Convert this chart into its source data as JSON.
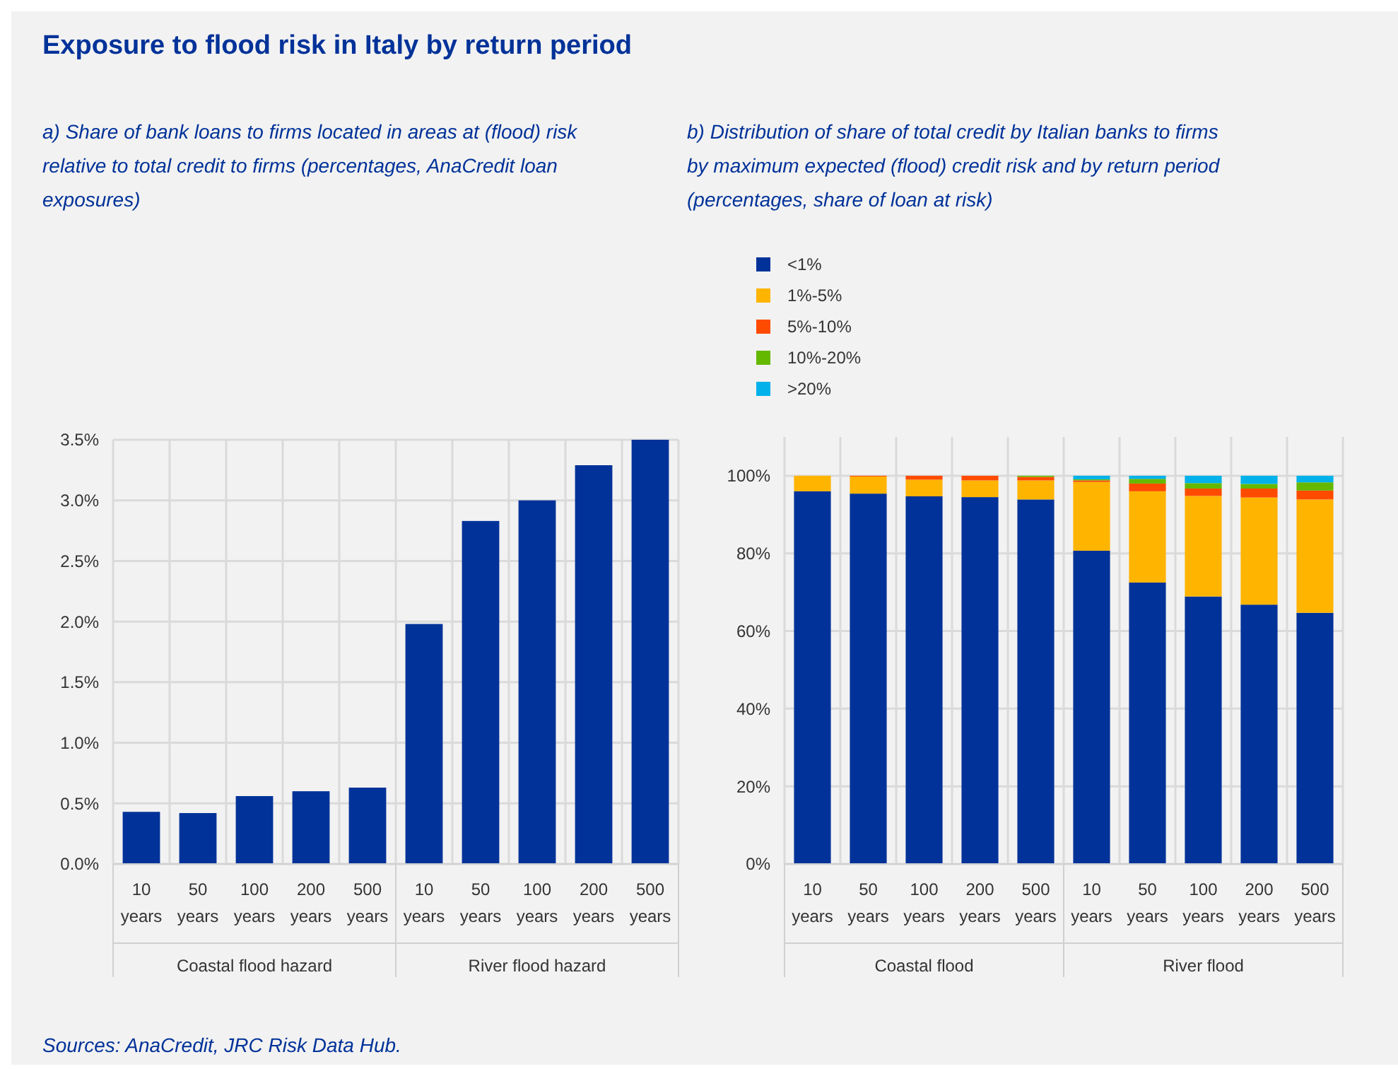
{
  "chart_data": [
    {
      "type": "bar",
      "title": "Exposure to flood risk in Italy by return period",
      "subtitle": "a) Share of bank loans to firms located in areas at (flood) risk relative to total credit to firms (percentages, AnaCredit loan exposures)",
      "categories": [
        "10 years",
        "50 years",
        "100 years",
        "200 years",
        "500 years",
        "10 years",
        "50 years",
        "100 years",
        "200 years",
        "500 years"
      ],
      "values": [
        0.43,
        0.42,
        0.56,
        0.6,
        0.63,
        1.98,
        2.83,
        3.0,
        3.29,
        3.5
      ],
      "color": "#003299",
      "ylim": [
        0,
        3.5
      ],
      "yticks": [
        {
          "value": 0,
          "label": "0.0%"
        },
        {
          "value": 0.5,
          "label": "0.5%"
        },
        {
          "value": 1,
          "label": "1.0%"
        },
        {
          "value": 1.5,
          "label": "1.5%"
        },
        {
          "value": 2,
          "label": "2.0%"
        },
        {
          "value": 2.5,
          "label": "2.5%"
        },
        {
          "value": 3,
          "label": "3.0%"
        },
        {
          "value": 3.5,
          "label": "3.5%"
        }
      ],
      "grid": true,
      "annotations": [
        "Coastal flood hazard",
        "River flood hazard"
      ]
    },
    {
      "type": "bar",
      "subtitle": "b) Distribution of share of total credit by Italian banks to firms by maximum expected (flood) credit risk and by return period (percentages, share of loan at risk)",
      "categories": [
        "10 years",
        "50 years",
        "100 years",
        "200 years",
        "500 years",
        "10 years",
        "50 years",
        "100 years",
        "200 years",
        "500 years"
      ],
      "stacked": true,
      "legend": "top",
      "grid": true,
      "ylim": [
        0,
        110
      ],
      "yticks": [
        {
          "value": 0,
          "label": "0%"
        },
        {
          "value": 20,
          "label": "20%"
        },
        {
          "value": 40,
          "label": "40%"
        },
        {
          "value": 60,
          "label": "60%"
        },
        {
          "value": 80,
          "label": "80%"
        },
        {
          "value": 100,
          "label": "100%"
        }
      ],
      "series": [
        {
          "name": "<1%",
          "color": "#003299",
          "values": [
            96,
            95.4,
            94.7,
            94.5,
            93.9,
            80.7,
            72.5,
            68.9,
            66.8,
            64.7
          ]
        },
        {
          "name": "1%-5%",
          "color": "#ffb400",
          "values": [
            4,
            4.4,
            4.3,
            4.3,
            4.9,
            17.7,
            23.5,
            25.9,
            27.6,
            29.2
          ]
        },
        {
          "name": "5%-10%",
          "color": "#ff4b00",
          "values": [
            0,
            0.2,
            1.0,
            1.2,
            0.9,
            0.4,
            2,
            1.9,
            2.3,
            2.3
          ]
        },
        {
          "name": "10%-20%",
          "color": "#65b800",
          "values": [
            0,
            0,
            0,
            0,
            0.3,
            0.3,
            1.2,
            1.4,
            1.2,
            2.1
          ]
        },
        {
          "name": ">20%",
          "color": "#00b1ea",
          "values": [
            0,
            0,
            0,
            0,
            0,
            0.9,
            0.8,
            1.9,
            2.1,
            1.7
          ]
        }
      ],
      "annotations": [
        "Coastal flood",
        "River flood",
        "Sources: AnaCredit, JRC Risk Data Hub."
      ]
    }
  ]
}
